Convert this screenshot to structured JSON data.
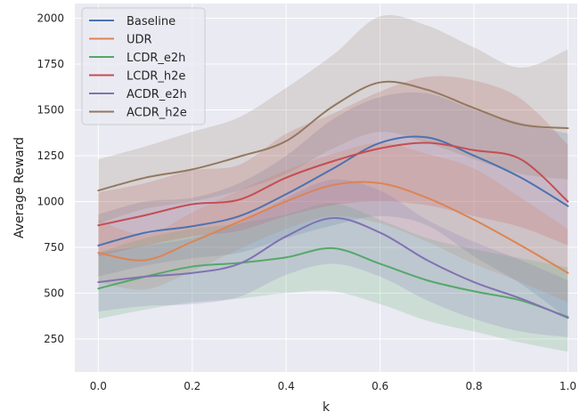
{
  "chart_data": {
    "type": "line",
    "title": "",
    "xlabel": "k",
    "ylabel": "Average Reward",
    "xlim": [
      -0.05,
      1.02
    ],
    "ylim": [
      70,
      2080
    ],
    "xticks": [
      0.0,
      0.2,
      0.4,
      0.6,
      0.8,
      1.0
    ],
    "xtick_labels": [
      "0.0",
      "0.2",
      "0.4",
      "0.6",
      "0.8",
      "1.0"
    ],
    "yticks": [
      250,
      500,
      750,
      1000,
      1250,
      1500,
      1750,
      2000
    ],
    "ytick_labels": [
      "250",
      "500",
      "750",
      "1000",
      "1250",
      "1500",
      "1750",
      "2000"
    ],
    "grid": true,
    "background": "#eaeaf2",
    "legend_position": "top-left",
    "x": [
      0.0,
      0.1,
      0.2,
      0.3,
      0.4,
      0.5,
      0.6,
      0.7,
      0.8,
      0.9,
      1.0
    ],
    "series": [
      {
        "name": "Baseline",
        "color": "#4c72b0",
        "values": [
          760,
          830,
          865,
          920,
          1040,
          1180,
          1320,
          1350,
          1250,
          1130,
          975
        ],
        "lower": [
          590,
          650,
          690,
          720,
          800,
          870,
          920,
          870,
          700,
          550,
          360
        ],
        "upper": [
          930,
          1000,
          1020,
          1100,
          1250,
          1450,
          1570,
          1590,
          1500,
          1430,
          1370
        ]
      },
      {
        "name": "UDR",
        "color": "#dd8452",
        "values": [
          720,
          680,
          780,
          890,
          1000,
          1090,
          1100,
          1020,
          900,
          760,
          610
        ],
        "lower": [
          560,
          520,
          620,
          740,
          850,
          920,
          880,
          780,
          660,
          560,
          450
        ],
        "upper": [
          900,
          820,
          940,
          1060,
          1170,
          1260,
          1320,
          1260,
          1180,
          1020,
          850
        ]
      },
      {
        "name": "LCDR_e2h",
        "color": "#55a868",
        "values": [
          525,
          590,
          645,
          665,
          695,
          745,
          660,
          570,
          510,
          460,
          370
        ],
        "lower": [
          360,
          410,
          450,
          470,
          500,
          510,
          440,
          350,
          290,
          230,
          180
        ],
        "upper": [
          720,
          800,
          850,
          880,
          930,
          990,
          900,
          800,
          740,
          690,
          640
        ]
      },
      {
        "name": "LCDR_h2e",
        "color": "#c44e52",
        "values": [
          870,
          925,
          985,
          1010,
          1130,
          1220,
          1290,
          1320,
          1280,
          1230,
          1000
        ],
        "lower": [
          700,
          760,
          810,
          840,
          920,
          980,
          1000,
          980,
          920,
          860,
          760
        ],
        "upper": [
          1050,
          1100,
          1170,
          1200,
          1370,
          1480,
          1600,
          1680,
          1660,
          1560,
          1310
        ]
      },
      {
        "name": "ACDR_e2h",
        "color": "#8172b3",
        "values": [
          560,
          590,
          610,
          660,
          810,
          910,
          830,
          680,
          560,
          470,
          365
        ],
        "lower": [
          400,
          430,
          440,
          480,
          600,
          660,
          590,
          460,
          360,
          290,
          260
        ],
        "upper": [
          720,
          760,
          800,
          880,
          1020,
          1120,
          1060,
          900,
          780,
          680,
          570
        ]
      },
      {
        "name": "ACDR_h2e",
        "color": "#937860",
        "values": [
          1060,
          1130,
          1175,
          1245,
          1330,
          1520,
          1650,
          1610,
          1510,
          1420,
          1400
        ],
        "lower": [
          880,
          960,
          1000,
          1060,
          1150,
          1290,
          1380,
          1320,
          1230,
          1150,
          1120
        ],
        "upper": [
          1230,
          1300,
          1380,
          1460,
          1620,
          1800,
          2010,
          1960,
          1840,
          1730,
          1830
        ]
      }
    ]
  }
}
